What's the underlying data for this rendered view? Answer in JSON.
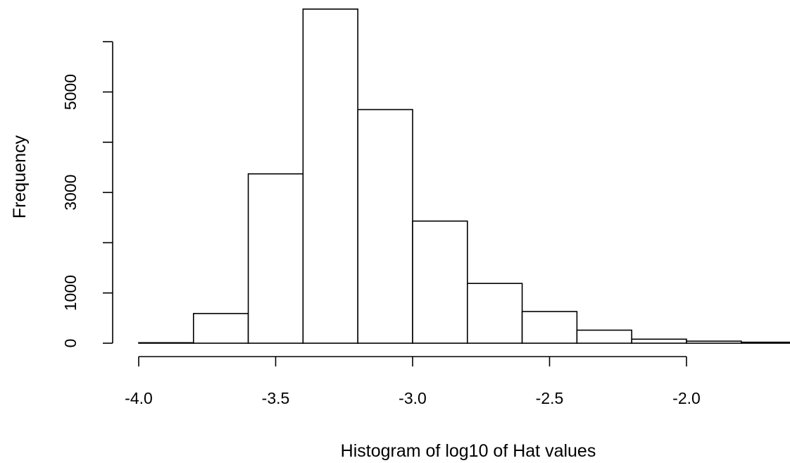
{
  "chart_data": {
    "type": "bar",
    "title": "",
    "xlabel": "Histogram of log10 of Hat values",
    "ylabel": "Frequency",
    "bins": [
      {
        "x0": -4.0,
        "x1": -3.8,
        "count": 10
      },
      {
        "x0": -3.8,
        "x1": -3.6,
        "count": 590
      },
      {
        "x0": -3.6,
        "x1": -3.4,
        "count": 3370
      },
      {
        "x0": -3.4,
        "x1": -3.2,
        "count": 6650
      },
      {
        "x0": -3.2,
        "x1": -3.0,
        "count": 4650
      },
      {
        "x0": -3.0,
        "x1": -2.8,
        "count": 2430
      },
      {
        "x0": -2.8,
        "x1": -2.6,
        "count": 1190
      },
      {
        "x0": -2.6,
        "x1": -2.4,
        "count": 630
      },
      {
        "x0": -2.4,
        "x1": -2.2,
        "count": 260
      },
      {
        "x0": -2.2,
        "x1": -2.0,
        "count": 80
      },
      {
        "x0": -2.0,
        "x1": -1.8,
        "count": 40
      },
      {
        "x0": -1.8,
        "x1": -1.6,
        "count": 20
      }
    ],
    "x_ticks": [
      -4.0,
      -3.5,
      -3.0,
      -2.5,
      -2.0
    ],
    "x_tick_labels": [
      "-4.0",
      "-3.5",
      "-3.0",
      "-2.5",
      "-2.0"
    ],
    "y_ticks": [
      0,
      1000,
      2000,
      3000,
      4000,
      5000,
      6000
    ],
    "y_tick_labels": [
      "0",
      "1000",
      "",
      "3000",
      "",
      "5000",
      ""
    ],
    "xlim": [
      -4.0,
      -1.6
    ],
    "ylim": [
      0,
      6650
    ],
    "grid": false,
    "colors": {
      "bar_fill": "#ffffff",
      "bar_stroke": "#000000",
      "axis": "#000000"
    }
  }
}
